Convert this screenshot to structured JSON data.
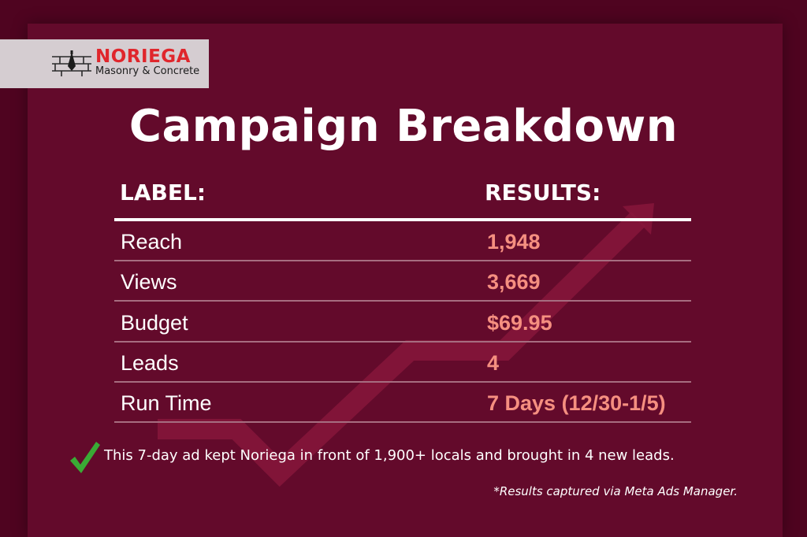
{
  "brand": {
    "name": "NORIEGA",
    "tagline": "Masonry & Concrete",
    "logo_icon": "brick-wall-trowel-icon",
    "name_color": "#e0262c"
  },
  "title": "Campaign Breakdown",
  "table": {
    "headers": [
      "LABEL:",
      "RESULTS:"
    ],
    "rows": [
      {
        "label": "Reach",
        "value": "1,948"
      },
      {
        "label": "Views",
        "value": "3,669"
      },
      {
        "label": "Budget",
        "value": "$69.95"
      },
      {
        "label": "Leads",
        "value": "4"
      },
      {
        "label": "Run Time",
        "value": "7 Days (12/30-1/5)"
      }
    ]
  },
  "summary": {
    "icon": "green-checkmark-icon",
    "text": "This 7-day ad kept Noriega in front of 1,900+ locals and brought in 4 new leads."
  },
  "footnote": "*Results captured via Meta Ads Manager.",
  "colors": {
    "background": "#4f0420",
    "panel": "#630a2b",
    "value_text": "#f58f80",
    "check": "#3aaa35",
    "trend_arrow": "#8a1538"
  }
}
